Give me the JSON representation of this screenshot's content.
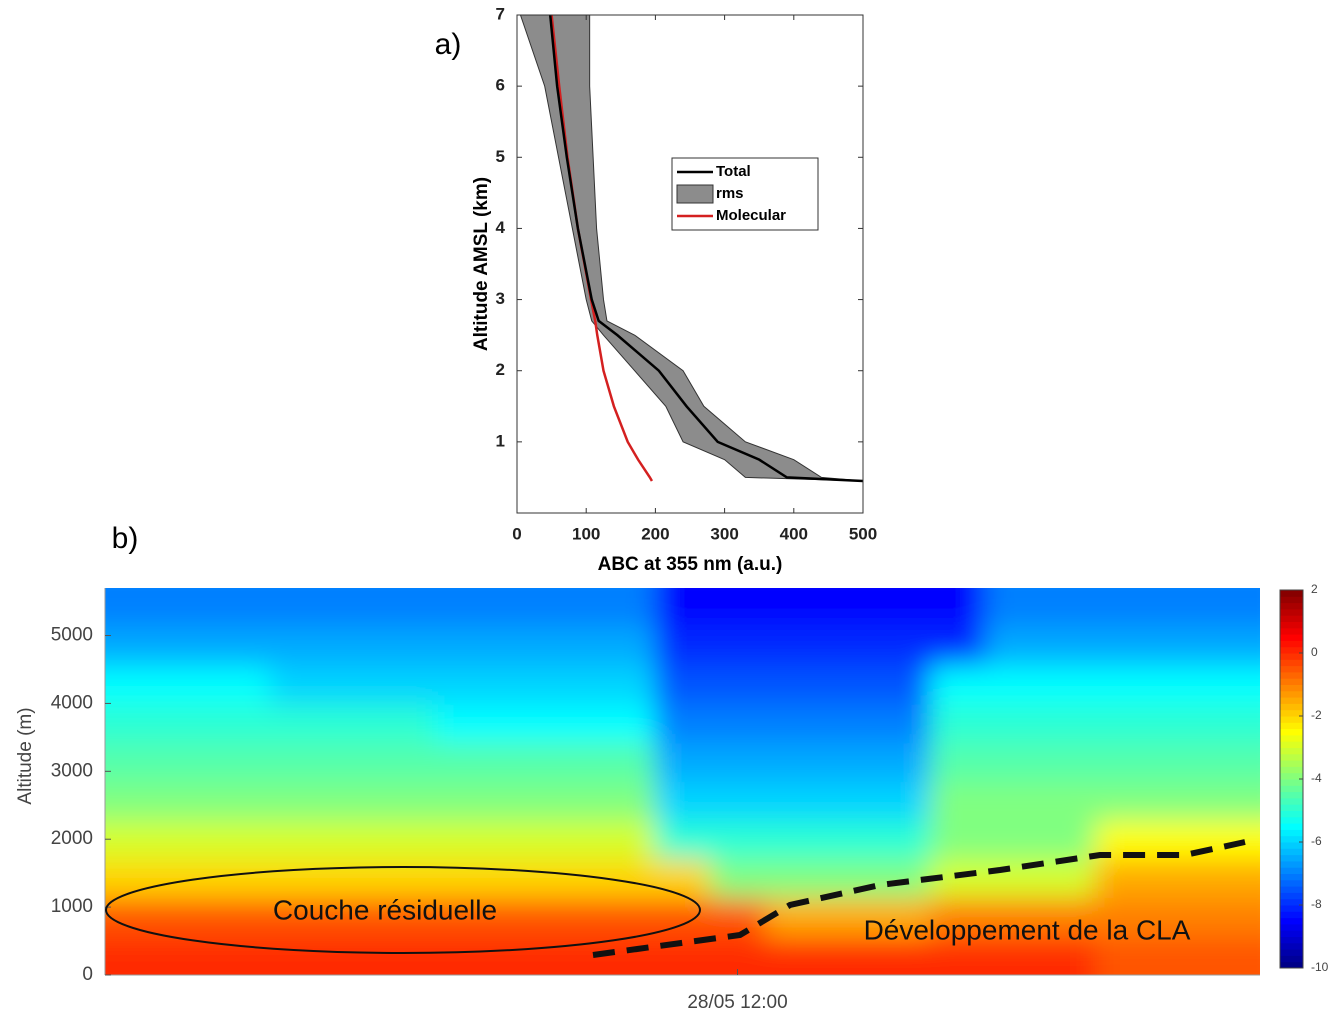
{
  "chart_data": [
    {
      "type": "profile",
      "label": "a)",
      "xlabel": "ABC at 355 nm (a.u.)",
      "ylabel": "Altitude AMSL (km)",
      "xlim": [
        0,
        500
      ],
      "xticks": [
        0,
        100,
        200,
        300,
        400,
        500
      ],
      "ylim": [
        0,
        7
      ],
      "yticks": [
        1,
        2,
        3,
        4,
        5,
        6,
        7
      ],
      "legend": "center right",
      "y": [
        0.45,
        0.5,
        0.75,
        1,
        1.5,
        2,
        2.5,
        2.7,
        3,
        4,
        5,
        6,
        7
      ],
      "series": [
        {
          "name": "Total",
          "color": "#000000",
          "values": [
            500,
            390,
            350,
            290,
            245,
            205,
            145,
            118,
            108,
            88,
            72,
            58,
            48
          ]
        },
        {
          "name": "rms",
          "color": "#8c8c8c",
          "low": [
            500,
            330,
            300,
            240,
            215,
            170,
            125,
            108,
            100,
            80,
            60,
            40,
            5
          ],
          "high": [
            500,
            440,
            400,
            330,
            270,
            240,
            170,
            130,
            125,
            115,
            110,
            105,
            105
          ]
        },
        {
          "name": "Molecular",
          "color": "#d42020",
          "values": [
            195,
            192,
            175,
            160,
            140,
            125,
            116,
            113,
            107,
            88,
            73,
            61,
            50
          ]
        }
      ]
    },
    {
      "type": "heatmap",
      "label": "b)",
      "ylabel": "Altitude (m)",
      "x": [
        null,
        null,
        null,
        null,
        null,
        null,
        null,
        null,
        null,
        null,
        null,
        "28/05 12:00",
        null,
        null,
        null,
        null,
        null,
        null,
        null,
        null,
        null
      ],
      "ybins": [
        0,
        570,
        1140,
        1710,
        2280,
        2850,
        3420,
        3990,
        4560,
        5130,
        5700
      ],
      "ylim": [
        0,
        5700
      ],
      "yticks": [
        0,
        1000,
        2000,
        3000,
        4000,
        5000
      ],
      "clim": [
        -10,
        2
      ],
      "cticks": [
        2,
        0,
        -2,
        -4,
        -6,
        -8,
        -10
      ],
      "z": [
        [
          0,
          0,
          0,
          0,
          0,
          0,
          0,
          0,
          0,
          0,
          0,
          0,
          0,
          0,
          0,
          0,
          0,
          0,
          -0.5,
          -0.5,
          -0.5
        ],
        [
          -0.5,
          -0.5,
          -0.5,
          -0.5,
          -0.5,
          -0.5,
          -0.5,
          -0.5,
          -0.5,
          -0.5,
          -0.5,
          -0.5,
          -1.5,
          -1.5,
          -1.5,
          -1,
          -1,
          -1,
          -1,
          -1,
          -1
        ],
        [
          -2,
          -2,
          -2,
          -2,
          -2,
          -2,
          -2,
          -2,
          -2,
          -2,
          -2,
          -4,
          -4,
          -4,
          -4,
          -3,
          -3,
          -3,
          -1.5,
          -1.5,
          -1.5
        ],
        [
          -3,
          -3,
          -3,
          -3,
          -3,
          -3,
          -3,
          -3,
          -3,
          -3,
          -5,
          -5,
          -5,
          -5,
          -5,
          -4,
          -4,
          -4,
          -2.5,
          -2.5,
          -2.5
        ],
        [
          -4,
          -4,
          -4,
          -4,
          -4,
          -4,
          -4,
          -4,
          -4,
          -4,
          -6,
          -6,
          -6,
          -6,
          -6,
          -4,
          -4,
          -4,
          -4,
          -4,
          -4
        ],
        [
          -4.5,
          -4.5,
          -4.5,
          -4.5,
          -4.5,
          -4.5,
          -4.5,
          -4.5,
          -4.5,
          -4.5,
          -6.5,
          -6.5,
          -6.5,
          -6.5,
          -6.5,
          -4.5,
          -4.5,
          -4.5,
          -4.5,
          -4.5,
          -4.5
        ],
        [
          -5,
          -5,
          -5,
          -5,
          -5,
          -5,
          -5.5,
          -5.5,
          -5.5,
          -5.5,
          -7,
          -7,
          -7,
          -7,
          -7,
          -5,
          -5,
          -5,
          -5,
          -5,
          -5
        ],
        [
          -5.5,
          -5.5,
          -5.5,
          -6,
          -6,
          -6,
          -6,
          -6,
          -6,
          -6,
          -7.5,
          -7.5,
          -7.5,
          -7.5,
          -7.5,
          -5.5,
          -5.5,
          -5.5,
          -5.5,
          -5.5,
          -5.5
        ],
        [
          -6.5,
          -6.5,
          -6.5,
          -6.5,
          -6.5,
          -6.5,
          -6.5,
          -6.5,
          -6.5,
          -6.5,
          -8,
          -8,
          -8,
          -8,
          -8,
          -8,
          -6.5,
          -6.5,
          -6.5,
          -6.5,
          -6.5
        ],
        [
          -7,
          -7,
          -7,
          -7,
          -7,
          -7,
          -7,
          -7,
          -7,
          -7,
          -8.5,
          -8.5,
          -8.5,
          -8.5,
          -8.5,
          -8.5,
          -7,
          -7,
          -7,
          -7,
          -7
        ]
      ],
      "annotations": [
        "Couche résiduelle",
        "Développement de la CLA"
      ]
    }
  ]
}
